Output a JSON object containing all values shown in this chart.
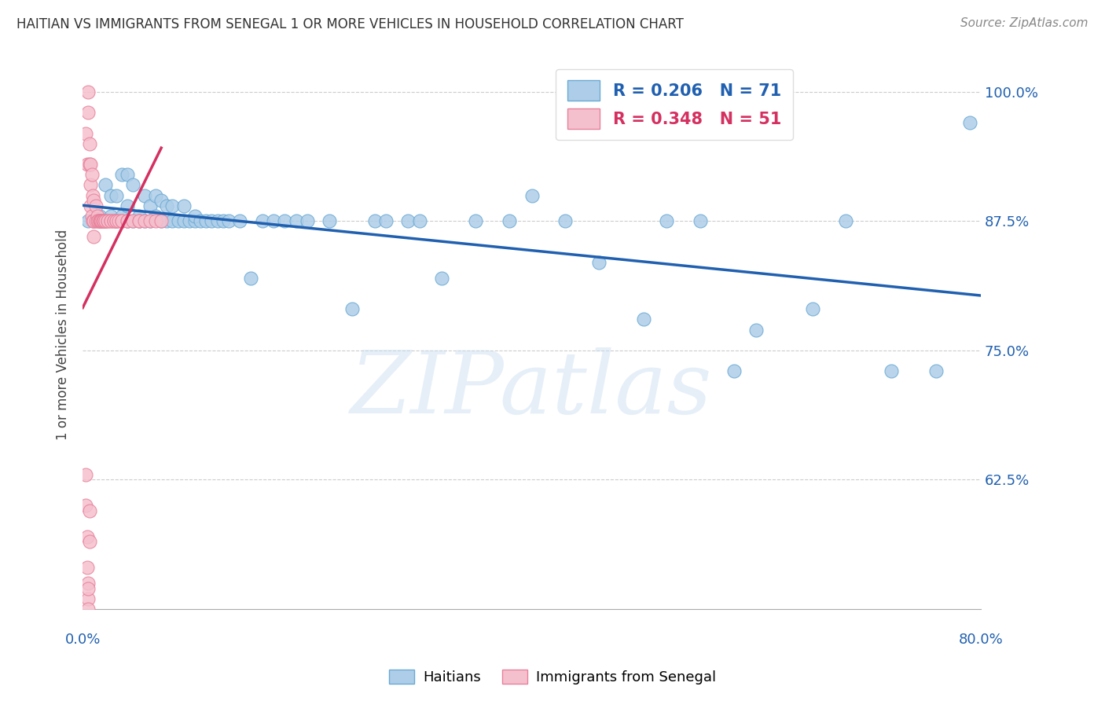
{
  "title": "HAITIAN VS IMMIGRANTS FROM SENEGAL 1 OR MORE VEHICLES IN HOUSEHOLD CORRELATION CHART",
  "source": "Source: ZipAtlas.com",
  "ylabel": "1 or more Vehicles in Household",
  "ytick_labels": [
    "100.0%",
    "87.5%",
    "75.0%",
    "62.5%"
  ],
  "ytick_values": [
    1.0,
    0.875,
    0.75,
    0.625
  ],
  "xlim": [
    0.0,
    0.8
  ],
  "ylim": [
    0.5,
    1.03
  ],
  "blue_color": "#aecde8",
  "pink_color": "#f5c0ce",
  "blue_edge": "#6aaad4",
  "pink_edge": "#e8809a",
  "trend_blue": "#2060b0",
  "trend_pink": "#d43060",
  "watermark": "ZIPatlas",
  "blue_x": [
    0.005,
    0.01,
    0.015,
    0.02,
    0.02,
    0.025,
    0.025,
    0.03,
    0.03,
    0.035,
    0.035,
    0.04,
    0.04,
    0.04,
    0.045,
    0.045,
    0.05,
    0.05,
    0.055,
    0.055,
    0.06,
    0.06,
    0.065,
    0.065,
    0.07,
    0.07,
    0.075,
    0.075,
    0.08,
    0.08,
    0.085,
    0.09,
    0.09,
    0.095,
    0.1,
    0.1,
    0.105,
    0.11,
    0.115,
    0.12,
    0.125,
    0.13,
    0.14,
    0.15,
    0.16,
    0.17,
    0.18,
    0.19,
    0.2,
    0.22,
    0.24,
    0.26,
    0.27,
    0.29,
    0.3,
    0.32,
    0.35,
    0.38,
    0.4,
    0.43,
    0.46,
    0.5,
    0.52,
    0.55,
    0.58,
    0.6,
    0.65,
    0.68,
    0.72,
    0.76,
    0.79
  ],
  "blue_y": [
    0.875,
    0.875,
    0.88,
    0.875,
    0.91,
    0.88,
    0.9,
    0.875,
    0.9,
    0.88,
    0.92,
    0.875,
    0.89,
    0.92,
    0.875,
    0.91,
    0.875,
    0.88,
    0.875,
    0.9,
    0.875,
    0.89,
    0.88,
    0.9,
    0.875,
    0.895,
    0.875,
    0.89,
    0.875,
    0.89,
    0.875,
    0.875,
    0.89,
    0.875,
    0.875,
    0.88,
    0.875,
    0.875,
    0.875,
    0.875,
    0.875,
    0.875,
    0.875,
    0.82,
    0.875,
    0.875,
    0.875,
    0.875,
    0.875,
    0.875,
    0.79,
    0.875,
    0.875,
    0.875,
    0.875,
    0.82,
    0.875,
    0.875,
    0.9,
    0.875,
    0.835,
    0.78,
    0.875,
    0.875,
    0.73,
    0.77,
    0.79,
    0.875,
    0.73,
    0.73,
    0.97
  ],
  "pink_x": [
    0.003,
    0.004,
    0.005,
    0.005,
    0.006,
    0.006,
    0.007,
    0.007,
    0.007,
    0.008,
    0.008,
    0.009,
    0.009,
    0.01,
    0.01,
    0.01,
    0.012,
    0.012,
    0.013,
    0.013,
    0.014,
    0.015,
    0.015,
    0.016,
    0.016,
    0.017,
    0.018,
    0.018,
    0.019,
    0.02,
    0.02,
    0.022,
    0.022,
    0.025,
    0.025,
    0.028,
    0.028,
    0.03,
    0.03,
    0.032,
    0.035,
    0.035,
    0.04,
    0.04,
    0.045,
    0.05,
    0.05,
    0.055,
    0.06,
    0.065,
    0.07
  ],
  "pink_y": [
    0.96,
    0.93,
    1.0,
    0.98,
    0.95,
    0.93,
    0.93,
    0.91,
    0.89,
    0.92,
    0.88,
    0.9,
    0.875,
    0.895,
    0.875,
    0.86,
    0.89,
    0.875,
    0.88,
    0.875,
    0.875,
    0.875,
    0.875,
    0.875,
    0.875,
    0.875,
    0.875,
    0.875,
    0.875,
    0.875,
    0.875,
    0.875,
    0.875,
    0.875,
    0.875,
    0.875,
    0.875,
    0.875,
    0.875,
    0.875,
    0.875,
    0.875,
    0.875,
    0.875,
    0.875,
    0.875,
    0.875,
    0.875,
    0.875,
    0.875,
    0.875
  ],
  "pink_low_x": [
    0.003,
    0.003,
    0.004,
    0.004,
    0.005,
    0.005,
    0.005,
    0.005,
    0.006,
    0.006
  ],
  "pink_low_y": [
    0.63,
    0.6,
    0.57,
    0.54,
    0.525,
    0.51,
    0.5,
    0.52,
    0.565,
    0.595
  ]
}
